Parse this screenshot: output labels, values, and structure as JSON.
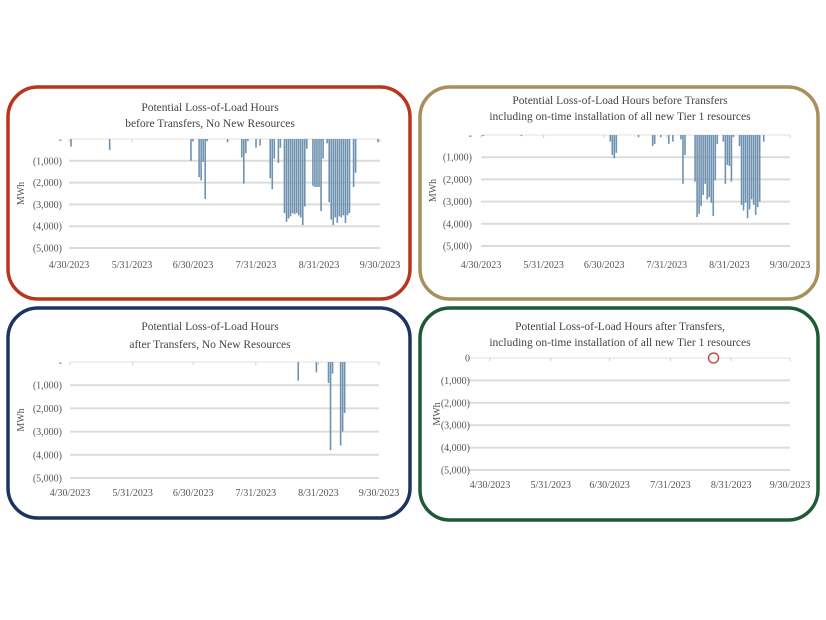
{
  "chart_data": [
    {
      "type": "bar",
      "title": [
        "Potential Loss-of-Load Hours",
        "before Transfers, No New Resources"
      ],
      "frame_color": "#b8361d",
      "ylabel": "MWh",
      "ylim": [
        -5000,
        0
      ],
      "ytick_labels": [
        "-",
        "(1,000)",
        "(2,000)",
        "(3,000)",
        "(4,000)",
        "(5,000)"
      ],
      "xtick_labels": [
        "4/30/2023",
        "5/31/2023",
        "6/30/2023",
        "7/31/2023",
        "8/31/2023",
        "9/30/2023"
      ],
      "x_unit": "days since 4/30/2023",
      "bars": [
        [
          1,
          -350
        ],
        [
          20,
          -500
        ],
        [
          60,
          -1000
        ],
        [
          61,
          -100
        ],
        [
          64,
          -1750
        ],
        [
          65,
          -1900
        ],
        [
          66,
          -1050
        ],
        [
          67,
          -2750
        ],
        [
          68,
          -100
        ],
        [
          78,
          -150
        ],
        [
          85,
          -850
        ],
        [
          86,
          -2050
        ],
        [
          87,
          -650
        ],
        [
          88,
          -100
        ],
        [
          92,
          -400
        ],
        [
          94,
          -300
        ],
        [
          99,
          -1800
        ],
        [
          100,
          -2300
        ],
        [
          101,
          -900
        ],
        [
          103,
          -1100
        ],
        [
          104,
          -400
        ],
        [
          106,
          -3400
        ],
        [
          107,
          -3800
        ],
        [
          108,
          -3650
        ],
        [
          109,
          -3550
        ],
        [
          110,
          -3400
        ],
        [
          111,
          -3450
        ],
        [
          112,
          -3400
        ],
        [
          113,
          -3500
        ],
        [
          114,
          -3600
        ],
        [
          115,
          -3950
        ],
        [
          116,
          -3100
        ],
        [
          117,
          -450
        ],
        [
          120,
          -2150
        ],
        [
          121,
          -2200
        ],
        [
          122,
          -2200
        ],
        [
          123,
          -2200
        ],
        [
          124,
          -3300
        ],
        [
          125,
          -900
        ],
        [
          127,
          -200
        ],
        [
          128,
          -2900
        ],
        [
          129,
          -3700
        ],
        [
          130,
          -3950
        ],
        [
          131,
          -3600
        ],
        [
          132,
          -3850
        ],
        [
          133,
          -3550
        ],
        [
          134,
          -3600
        ],
        [
          135,
          -3500
        ],
        [
          136,
          -3850
        ],
        [
          137,
          -3500
        ],
        [
          138,
          -3400
        ],
        [
          140,
          -2200
        ],
        [
          141,
          -1550
        ],
        [
          152,
          -150
        ]
      ]
    },
    {
      "type": "bar",
      "title": [
        "Potential Loss-of-Load Hours before Transfers",
        "including on-time installation of all new Tier 1 resources"
      ],
      "frame_color": "#a88f5c",
      "ylabel": "MWh",
      "ylim": [
        -5000,
        0
      ],
      "ytick_labels": [
        "-",
        "(1,000)",
        "(2,000)",
        "(3,000)",
        "(4,000)",
        "(5,000)"
      ],
      "xtick_labels": [
        "4/30/2023",
        "5/31/2023",
        "6/30/2023",
        "7/31/2023",
        "8/31/2023",
        "9/30/2023"
      ],
      "x_unit": "days since 4/30/2023",
      "bars": [
        [
          1,
          -50
        ],
        [
          20,
          -50
        ],
        [
          64,
          -300
        ],
        [
          65,
          -900
        ],
        [
          66,
          -1050
        ],
        [
          67,
          -800
        ],
        [
          78,
          -100
        ],
        [
          85,
          -500
        ],
        [
          86,
          -400
        ],
        [
          89,
          -100
        ],
        [
          93,
          -400
        ],
        [
          95,
          -300
        ],
        [
          99,
          -200
        ],
        [
          100,
          -2200
        ],
        [
          101,
          -900
        ],
        [
          106,
          -2100
        ],
        [
          107,
          -3700
        ],
        [
          108,
          -3550
        ],
        [
          109,
          -3200
        ],
        [
          110,
          -2700
        ],
        [
          111,
          -2200
        ],
        [
          112,
          -2900
        ],
        [
          113,
          -2800
        ],
        [
          114,
          -3050
        ],
        [
          115,
          -3650
        ],
        [
          116,
          -2050
        ],
        [
          117,
          -400
        ],
        [
          120,
          -300
        ],
        [
          121,
          -2200
        ],
        [
          122,
          -1350
        ],
        [
          123,
          -1400
        ],
        [
          124,
          -2100
        ],
        [
          125,
          -100
        ],
        [
          128,
          -500
        ],
        [
          129,
          -3150
        ],
        [
          130,
          -3400
        ],
        [
          131,
          -3050
        ],
        [
          132,
          -3750
        ],
        [
          133,
          -3350
        ],
        [
          134,
          -2900
        ],
        [
          135,
          -3150
        ],
        [
          136,
          -3600
        ],
        [
          137,
          -3250
        ],
        [
          138,
          -3000
        ],
        [
          140,
          -300
        ]
      ]
    },
    {
      "type": "bar",
      "title": [
        "Potential Loss-of-Load Hours",
        "after Transfers, No New Resources"
      ],
      "frame_color": "#1b3560",
      "ylabel": "MWh",
      "ylim": [
        -5000,
        0
      ],
      "ytick_labels": [
        "-",
        "(1,000)",
        "(2,000)",
        "(3,000)",
        "(4,000)",
        "(5,000)"
      ],
      "xtick_labels": [
        "4/30/2023",
        "5/31/2023",
        "6/30/2023",
        "7/31/2023",
        "8/31/2023",
        "9/30/2023"
      ],
      "x_unit": "days since 4/30/2023",
      "bars": [
        [
          113,
          -800
        ],
        [
          122,
          -450
        ],
        [
          128,
          -900
        ],
        [
          129,
          -3800
        ],
        [
          130,
          -500
        ],
        [
          134,
          -3600
        ],
        [
          135,
          -3000
        ],
        [
          136,
          -2200
        ]
      ]
    },
    {
      "type": "bar",
      "title": [
        "Potential Loss-of-Load Hours after Transfers,",
        "including on-time installation of all new Tier 1 resources"
      ],
      "frame_color": "#1e5a34",
      "ylabel": "MWh",
      "ylim": [
        -5000,
        0
      ],
      "ytick_labels": [
        "0",
        "(1,000)",
        "(2,000)",
        "(3,000)",
        "(4,000)",
        "(5,000)"
      ],
      "xtick_labels": [
        "4/30/2023",
        "5/31/2023",
        "6/30/2023",
        "7/31/2023",
        "8/31/2023",
        "9/30/2023"
      ],
      "x_unit": "days since 4/30/2023",
      "bars": [],
      "annotation": {
        "shape": "circle",
        "x": 114,
        "y": 0,
        "color": "#c0392b"
      }
    }
  ],
  "bar_color": "#6f92b0"
}
